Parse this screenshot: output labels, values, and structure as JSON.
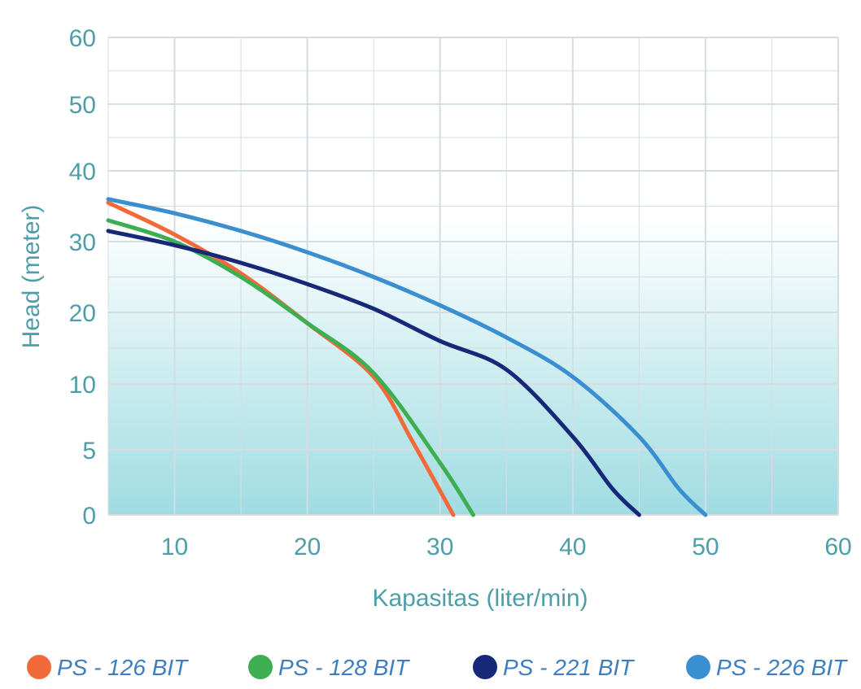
{
  "chart_data": {
    "type": "line",
    "title": "",
    "xlabel": "Kapasitas (liter/min)",
    "ylabel": "Head (meter)",
    "xlim": [
      5,
      60
    ],
    "ylim": [
      0,
      60
    ],
    "x_ticks": [
      "10",
      "20",
      "30",
      "40",
      "50",
      "60"
    ],
    "y_ticks": [
      "0",
      "5",
      "10",
      "20",
      "30",
      "40",
      "50",
      "60"
    ],
    "y_tick_values": [
      0,
      5,
      10,
      20,
      30,
      40,
      50,
      60
    ],
    "grid": true,
    "legend_placement": "bottom",
    "series": [
      {
        "name": "PS - 126 BIT",
        "color": "#f26a3a",
        "points": [
          [
            5,
            35.5
          ],
          [
            10,
            31
          ],
          [
            15,
            25.5
          ],
          [
            20,
            18.5
          ],
          [
            25,
            11
          ],
          [
            28,
            5.5
          ],
          [
            31,
            0
          ]
        ]
      },
      {
        "name": "PS - 128 BIT",
        "color": "#3dae52",
        "points": [
          [
            5,
            33
          ],
          [
            10,
            30
          ],
          [
            15,
            25
          ],
          [
            20,
            18.5
          ],
          [
            25,
            11.5
          ],
          [
            30,
            4
          ],
          [
            32.5,
            0
          ]
        ]
      },
      {
        "name": "PS - 221 BIT",
        "color": "#172878",
        "points": [
          [
            5,
            31.5
          ],
          [
            10,
            29.5
          ],
          [
            15,
            27
          ],
          [
            20,
            24
          ],
          [
            25,
            20.5
          ],
          [
            30,
            16
          ],
          [
            35,
            12
          ],
          [
            40,
            6
          ],
          [
            43,
            2
          ],
          [
            45,
            0
          ]
        ]
      },
      {
        "name": "PS - 226 BIT",
        "color": "#3a8fd0",
        "points": [
          [
            5,
            36
          ],
          [
            10,
            34
          ],
          [
            15,
            31.5
          ],
          [
            20,
            28.5
          ],
          [
            25,
            25
          ],
          [
            30,
            21
          ],
          [
            35,
            16.5
          ],
          [
            40,
            11
          ],
          [
            45,
            6
          ],
          [
            48,
            2
          ],
          [
            50,
            0
          ]
        ]
      }
    ]
  },
  "colors": {
    "grid": "#d4dde2",
    "axis_text": "#4e9ea8",
    "fill_top": "#ffffff",
    "fill_bottom": "#9fdce2"
  }
}
